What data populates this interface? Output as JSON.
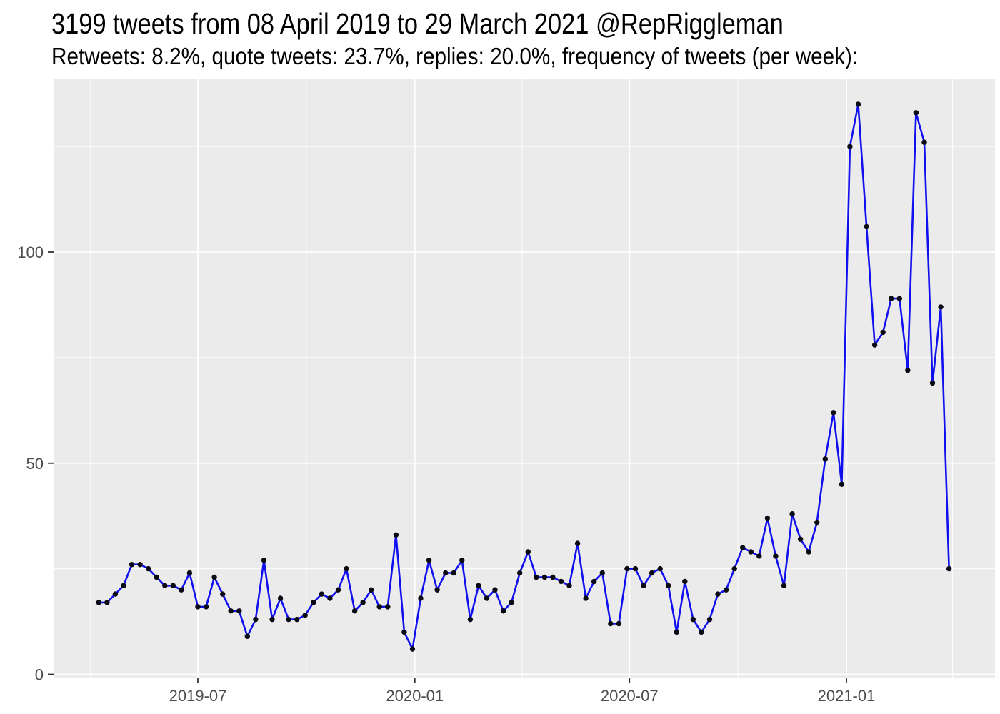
{
  "chart_data": {
    "type": "line",
    "title": "3199 tweets from 08 April 2019 to 29 March 2021 @RepRiggleman",
    "subtitle": "Retweets: 8.2%, quote tweets: 23.7%, replies: 20.0%, frequency of tweets (per week):",
    "xlabel": "",
    "ylabel": "",
    "legend_position": "none",
    "grid": true,
    "panel_bg": "#ebebeb",
    "grid_color": "#ffffff",
    "line_color": "#0f0fef",
    "point_color": "#0a0a14",
    "tick_color": "#333333",
    "axis_text_color": "#4d4d4d",
    "ylim": [
      0,
      141
    ],
    "yticks": [
      0,
      50,
      100
    ],
    "y_minor": [
      25,
      75,
      125
    ],
    "xticks": [
      {
        "label": "2019-07",
        "date": "2019-07-01"
      },
      {
        "label": "2020-01",
        "date": "2020-01-01"
      },
      {
        "label": "2020-07",
        "date": "2020-07-01"
      },
      {
        "label": "2021-01",
        "date": "2021-01-01"
      }
    ],
    "x_minor": [
      "2019-04-01",
      "2019-10-01",
      "2020-04-01",
      "2020-10-01",
      "2021-04-01"
    ],
    "series_name": "tweets per week",
    "x": [
      "2019-04-08",
      "2019-04-15",
      "2019-04-22",
      "2019-04-29",
      "2019-05-06",
      "2019-05-13",
      "2019-05-20",
      "2019-05-27",
      "2019-06-03",
      "2019-06-10",
      "2019-06-17",
      "2019-06-24",
      "2019-07-01",
      "2019-07-08",
      "2019-07-15",
      "2019-07-22",
      "2019-07-29",
      "2019-08-05",
      "2019-08-12",
      "2019-08-19",
      "2019-08-26",
      "2019-09-02",
      "2019-09-09",
      "2019-09-16",
      "2019-09-23",
      "2019-09-30",
      "2019-10-07",
      "2019-10-14",
      "2019-10-21",
      "2019-10-28",
      "2019-11-04",
      "2019-11-11",
      "2019-11-18",
      "2019-11-25",
      "2019-12-02",
      "2019-12-09",
      "2019-12-16",
      "2019-12-23",
      "2019-12-30",
      "2020-01-06",
      "2020-01-13",
      "2020-01-20",
      "2020-01-27",
      "2020-02-03",
      "2020-02-10",
      "2020-02-17",
      "2020-02-24",
      "2020-03-02",
      "2020-03-09",
      "2020-03-16",
      "2020-03-23",
      "2020-03-30",
      "2020-04-06",
      "2020-04-13",
      "2020-04-20",
      "2020-04-27",
      "2020-05-04",
      "2020-05-11",
      "2020-05-18",
      "2020-05-25",
      "2020-06-01",
      "2020-06-08",
      "2020-06-15",
      "2020-06-22",
      "2020-06-29",
      "2020-07-06",
      "2020-07-13",
      "2020-07-20",
      "2020-07-27",
      "2020-08-03",
      "2020-08-10",
      "2020-08-17",
      "2020-08-24",
      "2020-08-31",
      "2020-09-07",
      "2020-09-14",
      "2020-09-21",
      "2020-09-28",
      "2020-10-05",
      "2020-10-12",
      "2020-10-19",
      "2020-10-26",
      "2020-11-02",
      "2020-11-09",
      "2020-11-16",
      "2020-11-23",
      "2020-11-30",
      "2020-12-07",
      "2020-12-14",
      "2020-12-21",
      "2020-12-28",
      "2021-01-04",
      "2021-01-11",
      "2021-01-18",
      "2021-01-25",
      "2021-02-01",
      "2021-02-08",
      "2021-02-15",
      "2021-02-22",
      "2021-03-01",
      "2021-03-08",
      "2021-03-15",
      "2021-03-22",
      "2021-03-29"
    ],
    "values": [
      17,
      17,
      19,
      21,
      26,
      26,
      25,
      23,
      21,
      21,
      20,
      24,
      16,
      16,
      23,
      19,
      15,
      15,
      9,
      13,
      27,
      13,
      18,
      13,
      13,
      14,
      17,
      19,
      18,
      20,
      25,
      15,
      17,
      20,
      16,
      16,
      33,
      10,
      6,
      18,
      27,
      20,
      24,
      24,
      27,
      13,
      21,
      18,
      20,
      15,
      17,
      24,
      29,
      23,
      23,
      23,
      22,
      21,
      31,
      18,
      22,
      24,
      12,
      12,
      25,
      25,
      21,
      24,
      25,
      21,
      10,
      22,
      13,
      10,
      13,
      19,
      20,
      25,
      30,
      29,
      28,
      37,
      28,
      21,
      38,
      32,
      29,
      36,
      51,
      62,
      45,
      125,
      135,
      106,
      78,
      81,
      89,
      89,
      72,
      133,
      126,
      69,
      87,
      25
    ]
  }
}
